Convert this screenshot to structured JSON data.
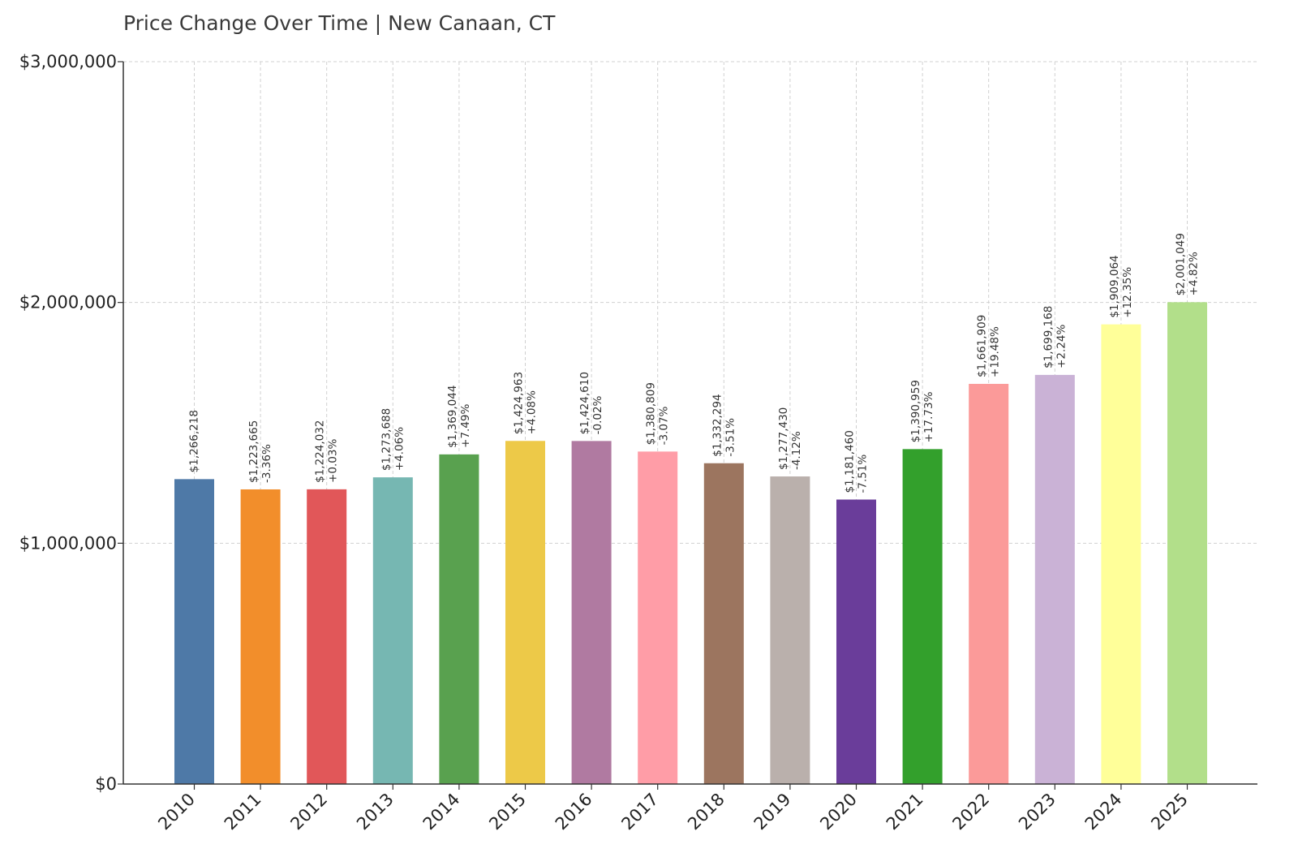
{
  "chart_data": {
    "type": "bar",
    "title": "Price Change Over Time | New Canaan, CT",
    "xlabel": "",
    "ylabel": "",
    "ylim": [
      0,
      3000000
    ],
    "yticks": [
      0,
      1000000,
      2000000,
      3000000
    ],
    "ytick_labels": [
      "$0",
      "$1,000,000",
      "$2,000,000",
      "$3,000,000"
    ],
    "grid": true,
    "categories": [
      "2010",
      "2011",
      "2012",
      "2013",
      "2014",
      "2015",
      "2016",
      "2017",
      "2018",
      "2019",
      "2020",
      "2021",
      "2022",
      "2023",
      "2024",
      "2025"
    ],
    "values": [
      1266218,
      1223665,
      1224032,
      1273688,
      1369044,
      1424963,
      1424610,
      1380809,
      1332294,
      1277430,
      1181460,
      1390959,
      1661909,
      1699168,
      1909064,
      2001049
    ],
    "value_labels": [
      "$1,266,218",
      "$1,223,665",
      "$1,224,032",
      "$1,273,688",
      "$1,369,044",
      "$1,424,963",
      "$1,424,610",
      "$1,380,809",
      "$1,332,294",
      "$1,277,430",
      "$1,181,460",
      "$1,390,959",
      "$1,661,909",
      "$1,699,168",
      "$1,909,064",
      "$2,001,049"
    ],
    "change_labels": [
      "",
      "-3.36%",
      "+0.03%",
      "+4.06%",
      "+7.49%",
      "+4.08%",
      "-0.02%",
      "-3.07%",
      "-3.51%",
      "-4.12%",
      "-7.51%",
      "+17.73%",
      "+19.48%",
      "+2.24%",
      "+12.35%",
      "+4.82%"
    ],
    "colors": [
      "#4e79a7",
      "#f28e2b",
      "#e15759",
      "#76b7b2",
      "#59a14f",
      "#edc948",
      "#b07aa1",
      "#ff9da7",
      "#9c755f",
      "#bab0ac",
      "#6a3d9a",
      "#33a02c",
      "#fb9a99",
      "#cab2d6",
      "#ffff99",
      "#b2df8a"
    ]
  }
}
